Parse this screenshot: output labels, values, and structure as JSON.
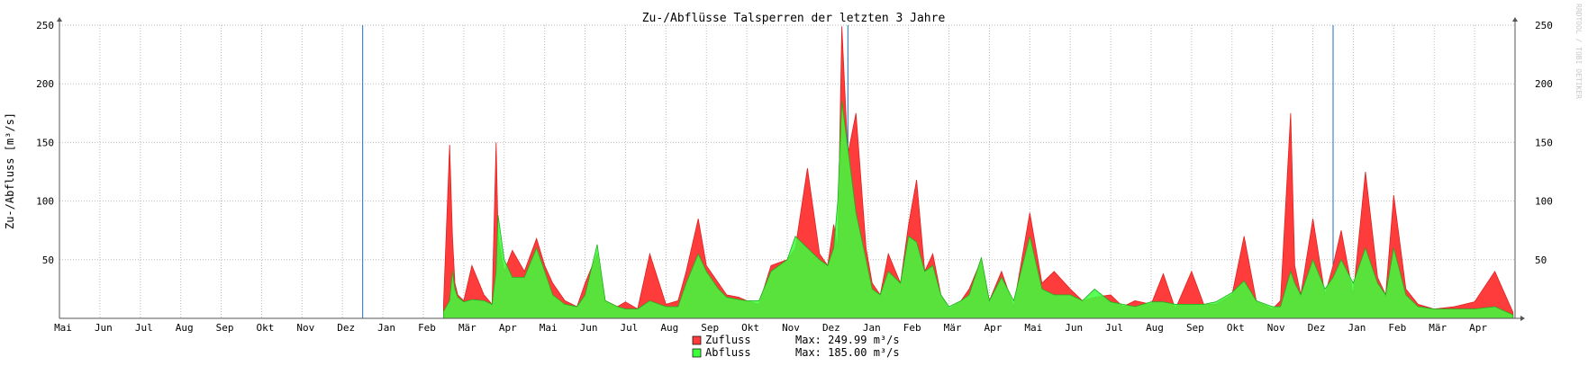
{
  "chart_data": {
    "type": "area",
    "title": "Zu-/Abflüsse Talsperren der letzten 3 Jahre",
    "ylabel": "Zu-/Abfluss [m³/s]",
    "ylim": [
      0,
      250
    ],
    "yticks": [
      50,
      100,
      150,
      200,
      250
    ],
    "grid": true,
    "legend_position": "bottom-center",
    "month_ticks": [
      "Mai",
      "Jun",
      "Jul",
      "Aug",
      "Sep",
      "Okt",
      "Nov",
      "Dez",
      "Jan",
      "Feb",
      "Mär",
      "Apr",
      "Mai",
      "Jun",
      "Jul",
      "Aug",
      "Sep",
      "Okt",
      "Nov",
      "Dez",
      "Jan",
      "Feb",
      "Mär",
      "Apr",
      "Mai",
      "Jun",
      "Jul",
      "Aug",
      "Sep",
      "Okt",
      "Nov",
      "Dez",
      "Jan",
      "Feb",
      "Mär",
      "Apr"
    ],
    "year_boundary_month_indices": [
      8,
      20,
      32
    ],
    "x_unit": "months since start of axis (0 = Mai)",
    "x": [
      9.5,
      9.65,
      9.72,
      9.78,
      9.85,
      10.0,
      10.2,
      10.5,
      10.7,
      10.8,
      10.85,
      11.0,
      11.2,
      11.5,
      11.8,
      12.0,
      12.2,
      12.5,
      12.8,
      13.0,
      13.3,
      13.5,
      13.8,
      14.0,
      14.3,
      14.6,
      15.0,
      15.3,
      15.5,
      15.8,
      16.0,
      16.3,
      16.5,
      16.8,
      17.0,
      17.3,
      17.6,
      18.0,
      18.2,
      18.5,
      18.8,
      19.0,
      19.15,
      19.25,
      19.35,
      19.5,
      19.7,
      19.95,
      20.1,
      20.3,
      20.5,
      20.8,
      21.0,
      21.2,
      21.4,
      21.6,
      21.8,
      22.0,
      22.3,
      22.5,
      22.8,
      23.0,
      23.3,
      23.6,
      24.0,
      24.3,
      24.6,
      25.0,
      25.3,
      25.6,
      26.0,
      26.3,
      26.6,
      27.0,
      27.3,
      27.6,
      28.0,
      28.3,
      28.6,
      29.0,
      29.3,
      29.6,
      30.0,
      30.2,
      30.45,
      30.55,
      30.7,
      31.0,
      31.3,
      31.5,
      31.7,
      32.0,
      32.3,
      32.6,
      32.8,
      33.0,
      33.3,
      33.6,
      34.0,
      34.5,
      35.0,
      35.5,
      35.95
    ],
    "series": [
      {
        "name": "Zufluss",
        "color": "#ff3c3c",
        "max_label": "Max: 249.99 m³/s",
        "values": [
          12,
          148,
          70,
          30,
          20,
          15,
          45,
          20,
          12,
          150,
          70,
          40,
          58,
          40,
          68,
          45,
          30,
          15,
          10,
          30,
          55,
          15,
          10,
          14,
          8,
          55,
          12,
          15,
          40,
          85,
          45,
          30,
          20,
          18,
          15,
          12,
          45,
          50,
          60,
          128,
          55,
          45,
          80,
          60,
          249,
          140,
          175,
          60,
          30,
          20,
          55,
          30,
          80,
          118,
          40,
          55,
          20,
          8,
          15,
          25,
          50,
          15,
          40,
          10,
          90,
          30,
          40,
          25,
          15,
          18,
          20,
          10,
          15,
          12,
          38,
          8,
          40,
          12,
          12,
          20,
          70,
          15,
          8,
          15,
          175,
          45,
          20,
          85,
          20,
          45,
          75,
          20,
          125,
          35,
          20,
          105,
          25,
          12,
          8,
          10,
          14,
          40,
          5
        ]
      },
      {
        "name": "Abfluss",
        "color": "#3cff3c",
        "max_label": "Max: 185.00 m³/s",
        "values": [
          6,
          15,
          40,
          25,
          18,
          14,
          16,
          15,
          12,
          40,
          88,
          50,
          35,
          35,
          60,
          40,
          20,
          12,
          10,
          20,
          63,
          15,
          10,
          8,
          8,
          15,
          10,
          10,
          30,
          55,
          40,
          25,
          18,
          16,
          15,
          15,
          40,
          50,
          70,
          60,
          50,
          45,
          60,
          100,
          185,
          145,
          90,
          50,
          25,
          20,
          40,
          30,
          70,
          65,
          40,
          45,
          20,
          10,
          15,
          20,
          52,
          15,
          35,
          15,
          70,
          25,
          20,
          20,
          15,
          25,
          14,
          12,
          10,
          14,
          14,
          12,
          12,
          12,
          14,
          22,
          32,
          15,
          10,
          10,
          40,
          30,
          20,
          50,
          25,
          35,
          50,
          30,
          60,
          30,
          20,
          60,
          20,
          10,
          8,
          8,
          8,
          10,
          3
        ]
      }
    ]
  },
  "watermark": "RRDTOOL / TOBI OETIKER"
}
